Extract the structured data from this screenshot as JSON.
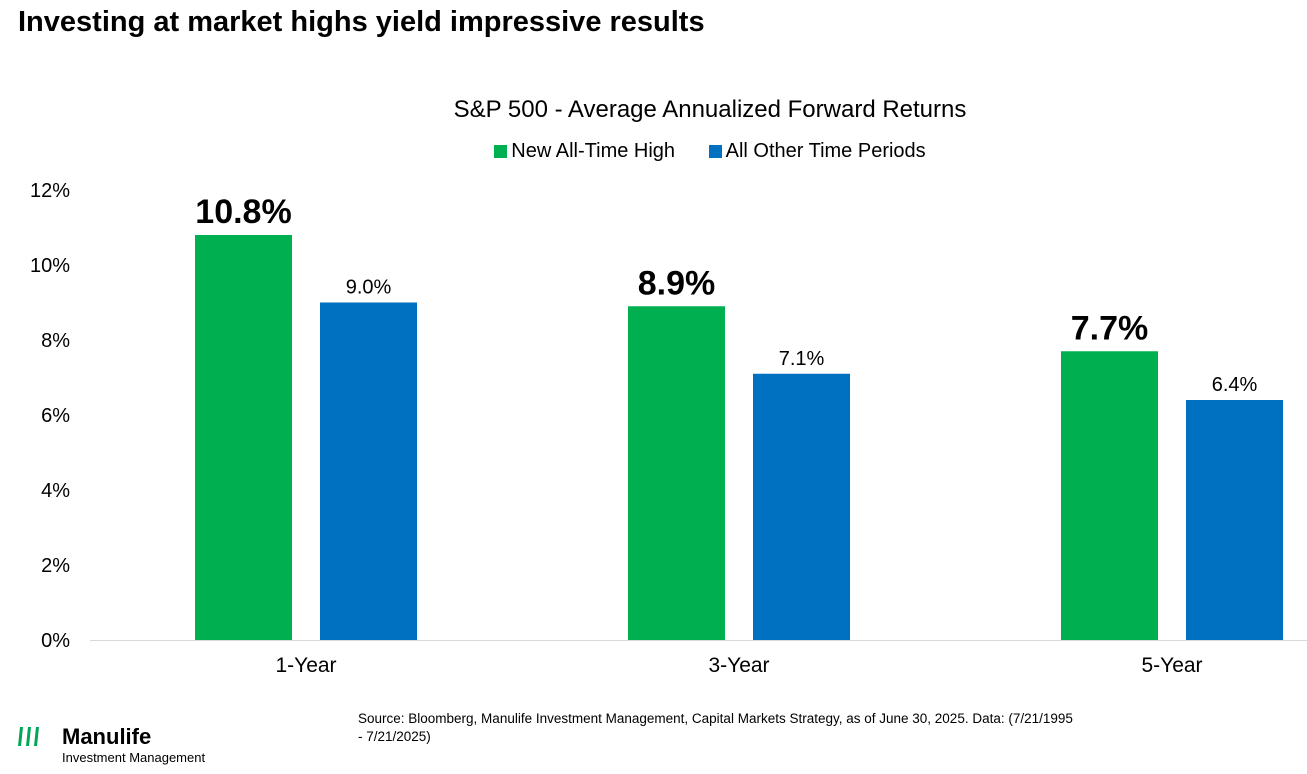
{
  "headline": "Investing at market highs yield impressive results",
  "colors": {
    "green": "#00b050",
    "blue": "#0070c0",
    "axis": "#d9d9d9"
  },
  "chart_data": {
    "type": "bar",
    "title": "S&P 500 - Average Annualized Forward Returns",
    "categories": [
      "1-Year",
      "3-Year",
      "5-Year"
    ],
    "series": [
      {
        "name": "New All-Time High",
        "values": [
          10.8,
          8.9,
          7.7
        ],
        "labels": [
          "10.8%",
          "8.9%",
          "7.7%"
        ]
      },
      {
        "name": "All Other Time Periods",
        "values": [
          9.0,
          7.1,
          6.4
        ],
        "labels": [
          "9.0%",
          "7.1%",
          "6.4%"
        ]
      }
    ],
    "ylim": [
      0,
      12
    ],
    "yticks": [
      0,
      2,
      4,
      6,
      8,
      10,
      12
    ],
    "ytick_labels": [
      "0%",
      "2%",
      "4%",
      "6%",
      "8%",
      "10%",
      "12%"
    ],
    "xlabel": "",
    "ylabel": "",
    "legend_position": "top-center",
    "grid": false
  },
  "source": "Source: Bloomberg, Manulife Investment Management, Capital Markets Strategy, as of June 30, 2025. Data: (7/21/1995 - 7/21/2025)",
  "logo": {
    "name": "Manulife",
    "subtitle": "Investment Management"
  }
}
